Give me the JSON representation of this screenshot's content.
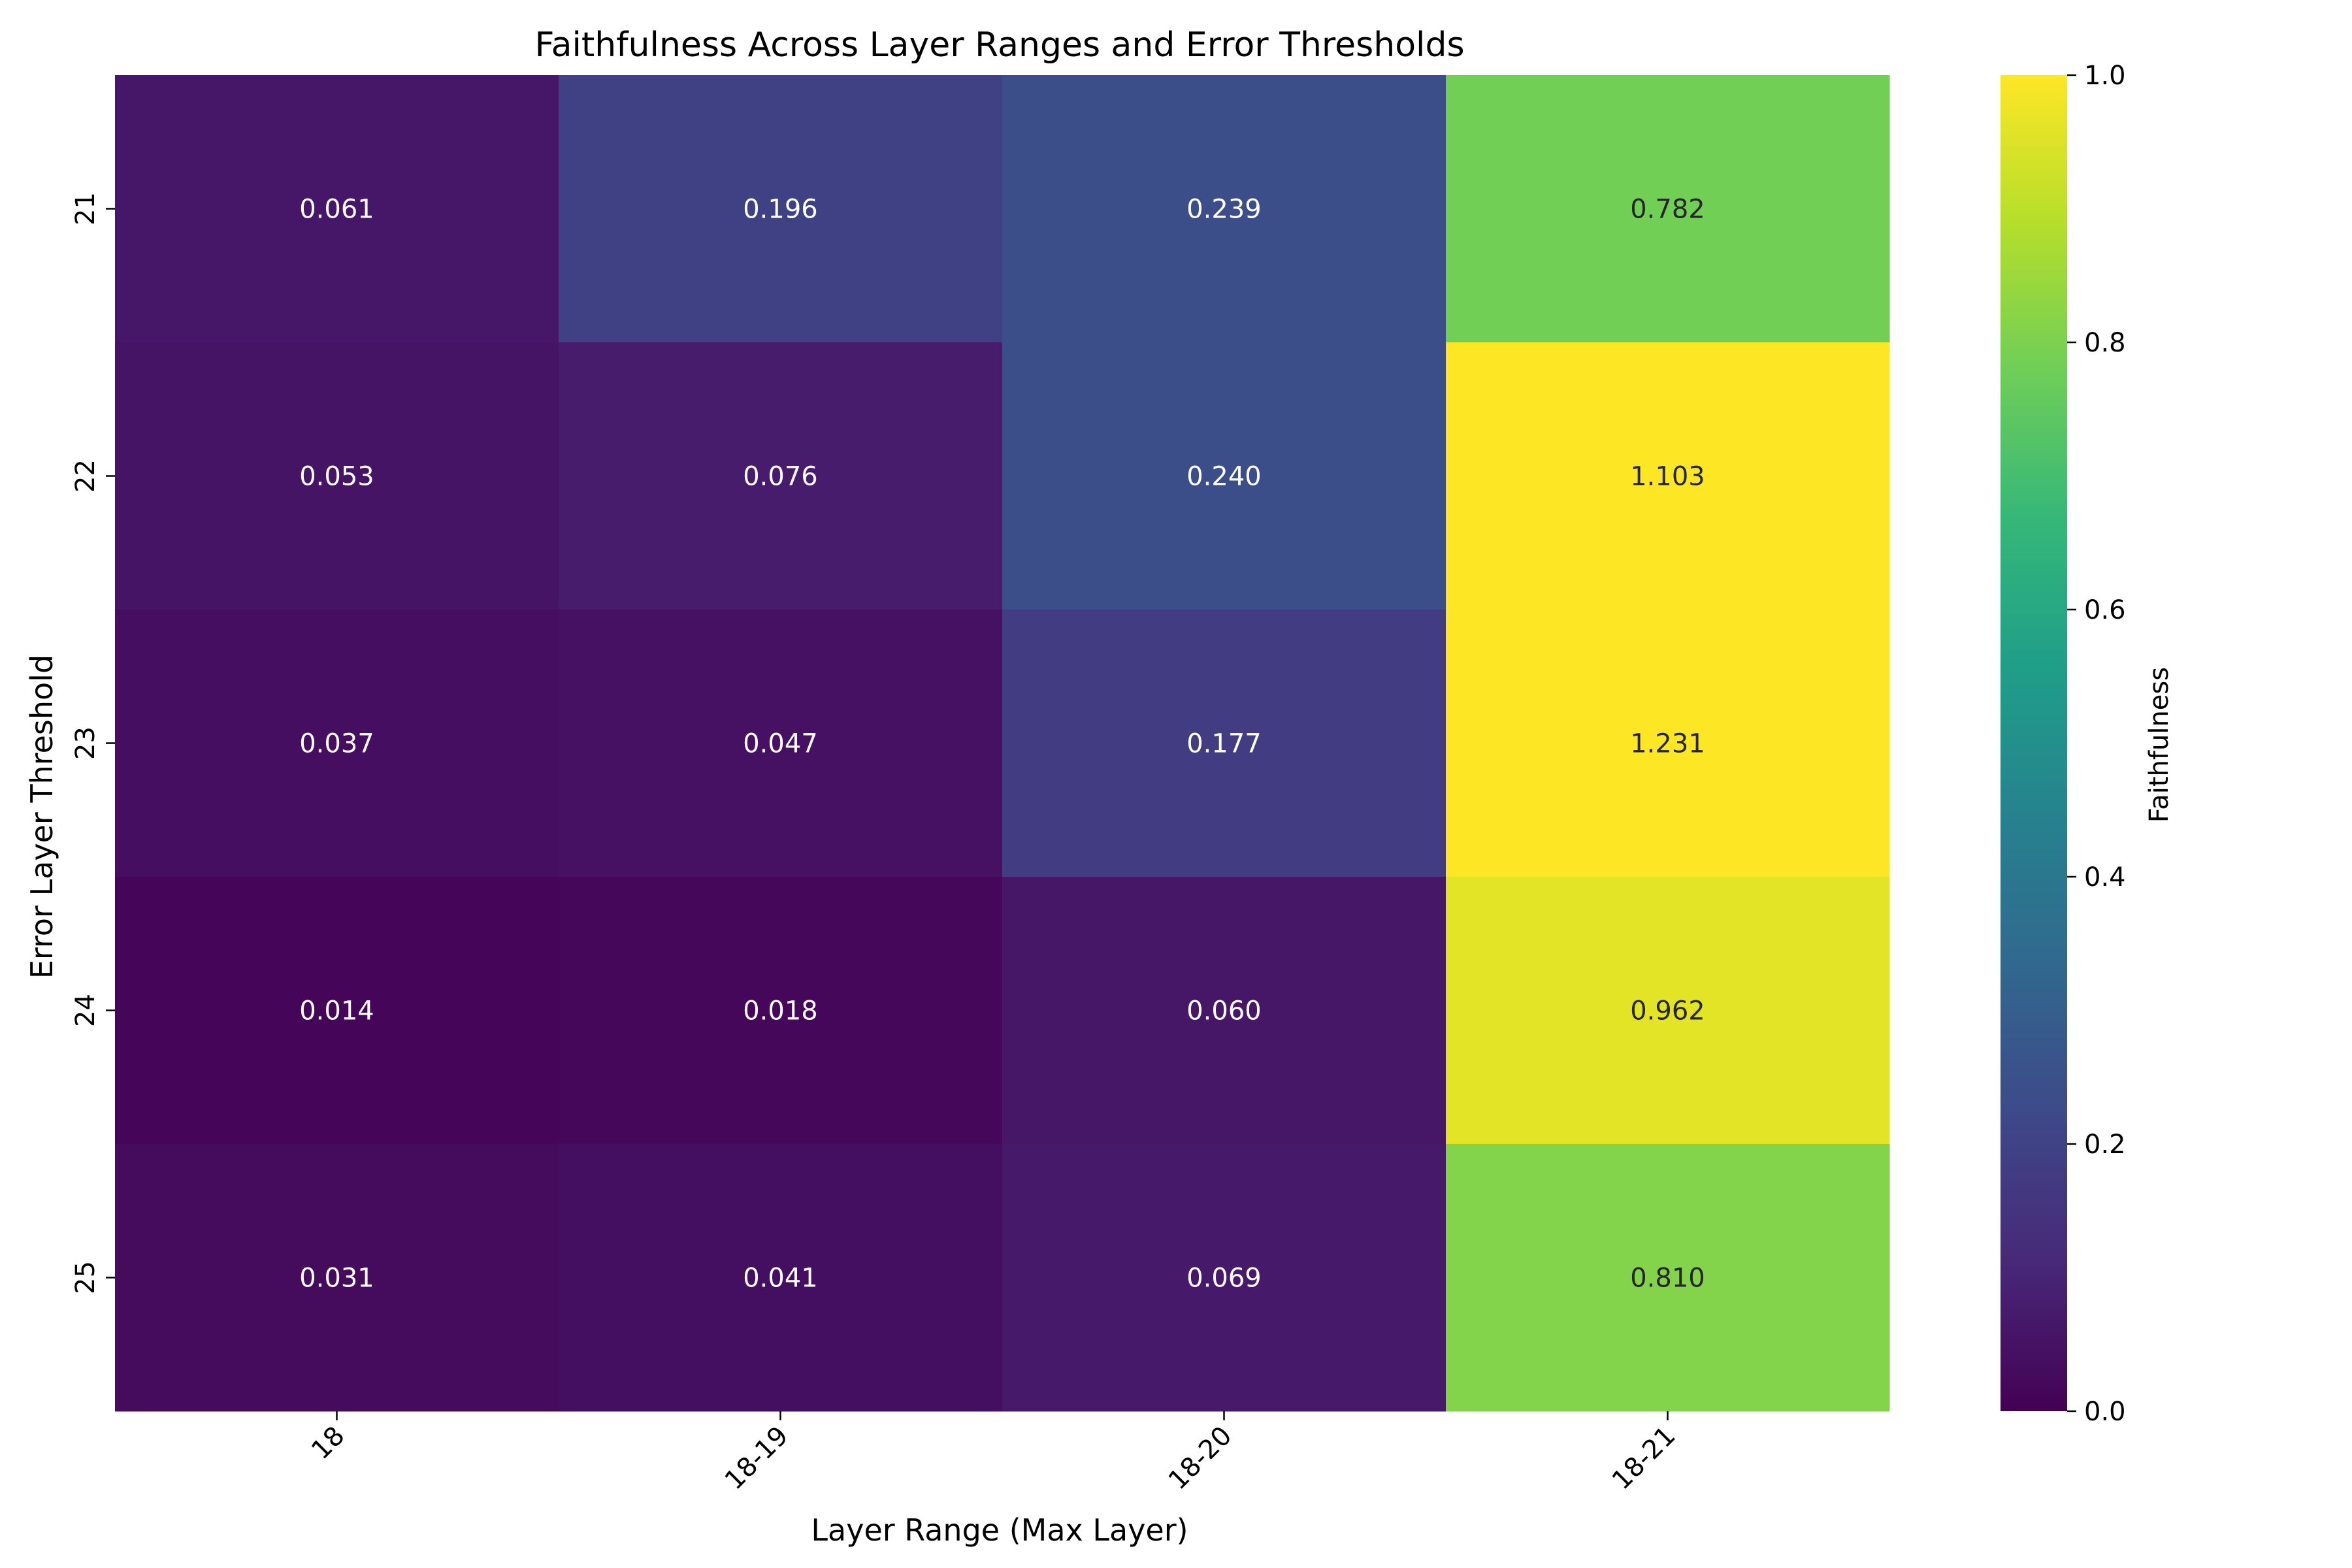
{
  "chart_data": {
    "type": "heatmap",
    "title": "Faithfulness Across Layer Ranges and Error Thresholds",
    "xlabel": "Layer Range (Max Layer)",
    "ylabel": "Error Layer Threshold",
    "x_categories": [
      "18",
      "18-19",
      "18-20",
      "18-21"
    ],
    "y_categories": [
      "21",
      "22",
      "23",
      "24",
      "25"
    ],
    "values": [
      [
        0.061,
        0.196,
        0.239,
        0.782
      ],
      [
        0.053,
        0.076,
        0.24,
        1.103
      ],
      [
        0.037,
        0.047,
        0.177,
        1.231
      ],
      [
        0.014,
        0.018,
        0.06,
        0.962
      ],
      [
        0.031,
        0.041,
        0.069,
        0.81
      ]
    ],
    "value_labels": [
      [
        "0.061",
        "0.196",
        "0.239",
        "0.782"
      ],
      [
        "0.053",
        "0.076",
        "0.240",
        "1.103"
      ],
      [
        "0.037",
        "0.047",
        "0.177",
        "1.231"
      ],
      [
        "0.014",
        "0.018",
        "0.060",
        "0.962"
      ],
      [
        "0.031",
        "0.041",
        "0.069",
        "0.810"
      ]
    ],
    "colorbar": {
      "label": "Faithfulness",
      "range": [
        0.0,
        1.0
      ],
      "tick_values": [
        0.0,
        0.2,
        0.4,
        0.6,
        0.8,
        1.0
      ],
      "tick_labels": [
        "0.0",
        "0.2",
        "0.4",
        "0.6",
        "0.8",
        "1.0"
      ],
      "colormap": "viridis"
    },
    "x_tick_rotation_deg": 45,
    "grid": false
  }
}
